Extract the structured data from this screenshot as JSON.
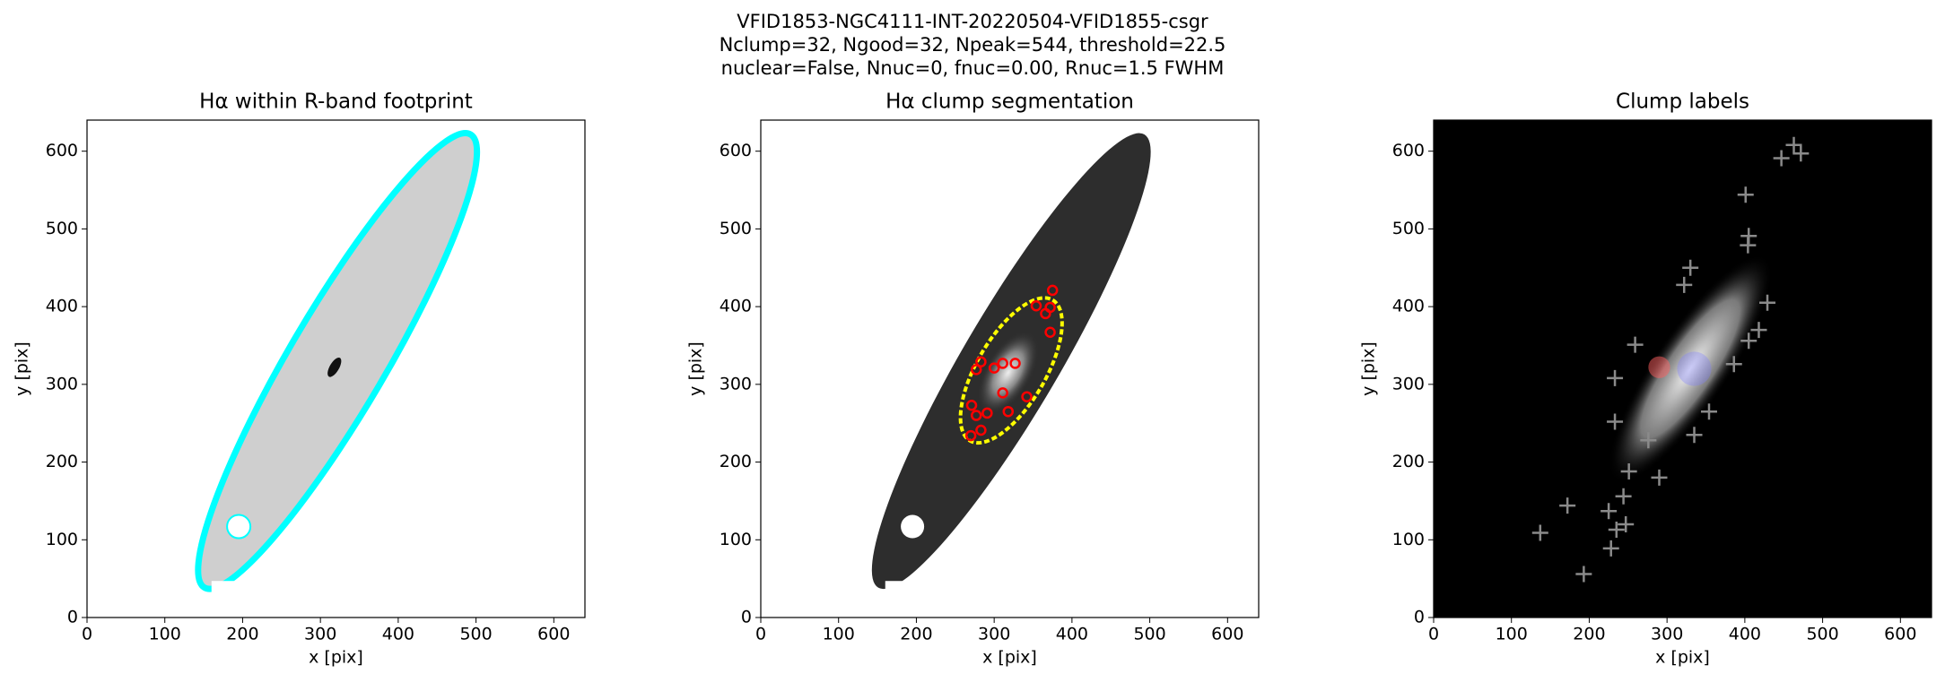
{
  "suptitle": [
    "VFID1853-NGC4111-INT-20220504-VFID1855-csgr",
    "Nclump=32, Ngood=32, Npeak=544, threshold=22.5",
    "nuclear=False, Nnuc=0, fnuc=0.00, Rnuc=1.5 FWHM"
  ],
  "chart_data": [
    {
      "type": "image",
      "style": "footprint",
      "title": "Hα within R-band footprint",
      "xlabel": "x [pix]",
      "ylabel": "y [pix]",
      "xlim": [
        0,
        640
      ],
      "ylim": [
        0,
        640
      ],
      "xticks": [
        0,
        100,
        200,
        300,
        400,
        500,
        600
      ],
      "yticks": [
        0,
        100,
        200,
        300,
        400,
        500,
        600
      ]
    },
    {
      "type": "image",
      "style": "segmentation",
      "title": "Hα clump segmentation",
      "xlabel": "x [pix]",
      "ylabel": "y [pix]",
      "xlim": [
        0,
        640
      ],
      "ylim": [
        0,
        640
      ],
      "xticks": [
        0,
        100,
        200,
        300,
        400,
        500,
        600
      ],
      "yticks": [
        0,
        100,
        200,
        300,
        400,
        500,
        600
      ],
      "series": [
        {
          "color": "#ff0000",
          "marker": "circle",
          "x": [
            270,
            283,
            277,
            291,
            271,
            318,
            342,
            311,
            372,
            372,
            375,
            366,
            354,
            283,
            300,
            311,
            327,
            277
          ],
          "y": [
            234,
            241,
            260,
            263,
            273,
            265,
            284,
            289,
            367,
            399,
            421,
            391,
            401,
            329,
            321,
            327,
            327,
            319
          ]
        }
      ]
    },
    {
      "type": "image",
      "style": "labels",
      "title": "Clump labels",
      "xlabel": "x [pix]",
      "ylabel": "y [pix]",
      "xlim": [
        0,
        640
      ],
      "ylim": [
        0,
        640
      ],
      "xticks": [
        0,
        100,
        200,
        300,
        400,
        500,
        600
      ],
      "yticks": [
        0,
        100,
        200,
        300,
        400,
        500,
        600
      ],
      "series": [
        {
          "color": "#8a8a8a",
          "marker": "plus",
          "x": [
            137,
            172,
            193,
            228,
            225,
            235,
            247,
            244,
            251,
            233,
            233,
            259,
            276,
            290,
            335,
            354,
            386,
            405,
            404,
            401,
            429,
            418,
            447,
            463,
            472,
            330,
            322,
            405
          ],
          "y": [
            109,
            144,
            56,
            89,
            137,
            113,
            120,
            156,
            188,
            252,
            308,
            351,
            228,
            180,
            235,
            265,
            326,
            356,
            479,
            544,
            405,
            370,
            591,
            608,
            597,
            450,
            428,
            491
          ]
        }
      ]
    }
  ]
}
